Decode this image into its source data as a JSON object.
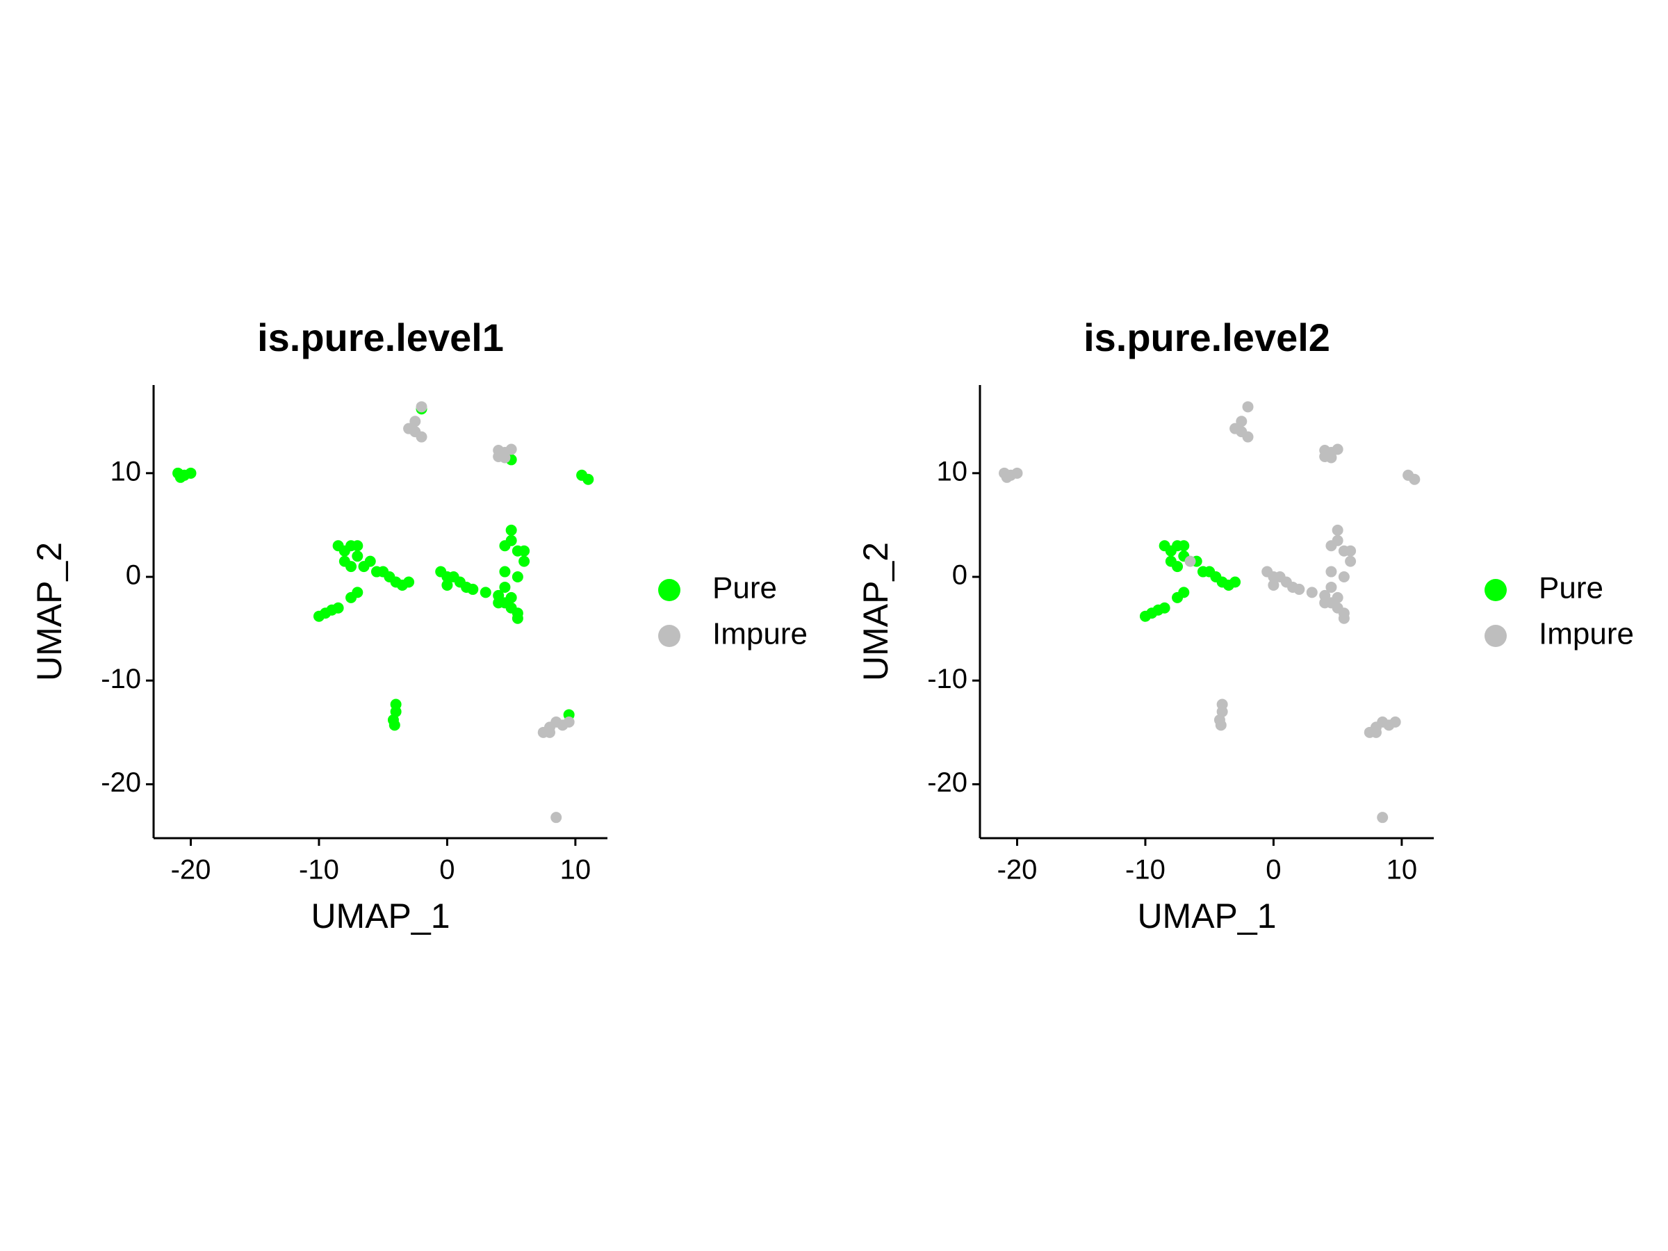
{
  "chart_data": [
    {
      "type": "scatter",
      "title": "is.pure.level1",
      "x_label": "UMAP_1",
      "y_label": "UMAP_2",
      "xlim": [
        -22.9,
        12.5
      ],
      "ylim": [
        -25.2,
        18.5
      ],
      "xticks": [
        -20,
        -10,
        0,
        10
      ],
      "yticks": [
        -20,
        -10,
        0,
        10
      ],
      "legend": "right",
      "series": [
        {
          "name": "Pure",
          "color": "#00ff00",
          "x": [
            -21,
            -20.5,
            -20,
            -20.8,
            -2,
            5,
            10.5,
            11,
            -8.5,
            -8,
            -7.5,
            -7,
            -7,
            -6.5,
            -6,
            -5.5,
            -5,
            -4.5,
            -4,
            -3.5,
            -3,
            -8,
            -7.5,
            -10,
            -9.5,
            -9,
            -8.5,
            -7.5,
            -7,
            -0.5,
            0,
            0.5,
            0,
            1,
            1.5,
            2,
            3,
            4,
            4,
            4.5,
            5,
            5,
            5.5,
            5.5,
            4.5,
            4.5,
            5,
            5,
            5.5,
            6,
            5.5,
            6,
            4.5,
            -4,
            -4,
            -4.2,
            -4.1,
            9.5
          ],
          "y": [
            10,
            9.8,
            10,
            9.6,
            16.2,
            11.3,
            9.8,
            9.4,
            3,
            2.5,
            3,
            2,
            3,
            1,
            1.5,
            0.5,
            0.5,
            0,
            -0.5,
            -0.8,
            -0.5,
            1.5,
            1,
            -3.8,
            -3.5,
            -3.2,
            -3,
            -2,
            -1.5,
            0.5,
            0,
            0,
            -0.8,
            -0.5,
            -1,
            -1.2,
            -1.5,
            -1.8,
            -2.5,
            -1,
            -2,
            -3,
            -4,
            -3.5,
            0.5,
            3,
            4.5,
            3.5,
            2.5,
            1.5,
            0,
            2.5,
            -2.5,
            -12.3,
            -13,
            -13.8,
            -14.3,
            -13.3
          ]
        },
        {
          "name": "Impure",
          "color": "#bebebe",
          "x": [
            -2,
            -2.5,
            -3,
            -2.5,
            -2,
            4,
            4.5,
            5,
            4,
            4.5,
            7.5,
            8,
            8.5,
            9,
            9.5,
            8,
            8.5
          ],
          "y": [
            16.4,
            15,
            14.3,
            14,
            13.5,
            12.2,
            12,
            12.3,
            11.6,
            11.5,
            -15,
            -14.5,
            -14,
            -14.3,
            -14,
            -15,
            -23.2
          ]
        }
      ]
    },
    {
      "type": "scatter",
      "title": "is.pure.level2",
      "x_label": "UMAP_1",
      "y_label": "UMAP_2",
      "xlim": [
        -22.9,
        12.5
      ],
      "ylim": [
        -25.2,
        18.5
      ],
      "xticks": [
        -20,
        -10,
        0,
        10
      ],
      "yticks": [
        -20,
        -10,
        0,
        10
      ],
      "legend": "right",
      "series": [
        {
          "name": "Pure",
          "color": "#00ff00",
          "x": [
            -8.5,
            -8,
            -7.5,
            -7,
            -7,
            -6,
            -5.5,
            -5,
            -4.5,
            -4,
            -3.5,
            -3,
            -8,
            -7.5,
            -10,
            -9.5,
            -9,
            -8.5,
            -7.5,
            -7
          ],
          "y": [
            3,
            2.5,
            3,
            2,
            3,
            1.5,
            0.5,
            0.5,
            0,
            -0.5,
            -0.8,
            -0.5,
            1.5,
            1,
            -3.8,
            -3.5,
            -3.2,
            -3,
            -2,
            -1.5
          ]
        },
        {
          "name": "Impure",
          "color": "#bebebe",
          "x": [
            -21,
            -20.5,
            -20,
            -20.8,
            -6.5,
            -2,
            -2.5,
            -3,
            -2.5,
            -2,
            4,
            4.5,
            5,
            4,
            4.5,
            10.5,
            11,
            -0.5,
            0,
            0.5,
            0,
            1,
            1.5,
            2,
            3,
            4,
            4,
            4.5,
            5,
            5,
            5.5,
            5.5,
            4.5,
            4.5,
            5,
            5,
            5.5,
            6,
            5.5,
            6,
            4.5,
            -4,
            -4,
            -4.2,
            -4.1,
            7.5,
            8,
            8.5,
            9,
            9.5,
            8,
            8.5
          ],
          "y": [
            10,
            9.8,
            10,
            9.6,
            1.5,
            16.4,
            15,
            14.3,
            14,
            13.5,
            12.2,
            12,
            12.3,
            11.6,
            11.5,
            9.8,
            9.4,
            0.5,
            0,
            0,
            -0.8,
            -0.5,
            -1,
            -1.2,
            -1.5,
            -1.8,
            -2.5,
            -1,
            -2,
            -3,
            -4,
            -3.5,
            0.5,
            3,
            4.5,
            3.5,
            2.5,
            1.5,
            0,
            2.5,
            -2.5,
            -12.3,
            -13,
            -13.8,
            -14.3,
            -15,
            -14.5,
            -14,
            -14.3,
            -14,
            -15,
            -23.2
          ]
        }
      ]
    }
  ]
}
